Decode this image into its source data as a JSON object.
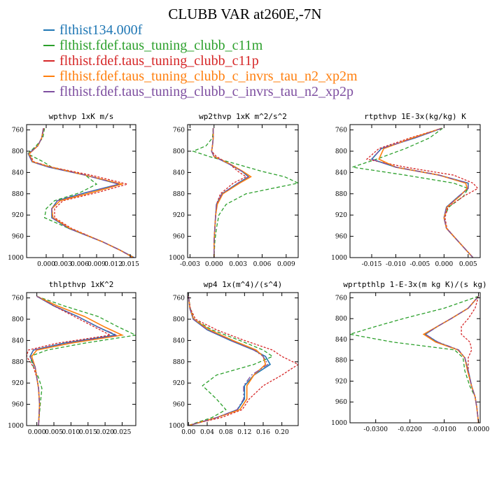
{
  "figure": {
    "title": "CLUBB VAR at260E,-7N",
    "legend": [
      {
        "label": "flthist134.000f",
        "color": "#1f77b4"
      },
      {
        "label": "flthist.fdef.taus_tuning_clubb_c11m",
        "color": "#2ca02c"
      },
      {
        "label": "flthist.fdef.taus_tuning_clubb_c11p",
        "color": "#d62728"
      },
      {
        "label": "flthist.fdef.taus_tuning_clubb_c_invrs_tau_n2_xp2m",
        "color": "#ff7f0e"
      },
      {
        "label": "flthist.fdef.taus_tuning_clubb_c_invrs_tau_n2_xp2p",
        "color": "#7e4fa0"
      }
    ]
  },
  "chart_data": [
    {
      "type": "line",
      "title": "wpthvp  1xK m/s",
      "y_ticks": [
        "760",
        "800",
        "840",
        "880",
        "920",
        "960",
        "1000"
      ],
      "ylim": [
        1000,
        750
      ],
      "xlim": [
        -0.0035,
        0.016
      ],
      "x_ticks": [
        "0.000",
        "0.003",
        "0.006",
        "0.009",
        "0.012",
        "0.015"
      ],
      "x_tick_values": [
        0,
        0.003,
        0.006,
        0.009,
        0.012,
        0.015
      ],
      "y": [
        757,
        775,
        790,
        805,
        820,
        830,
        845,
        862,
        878,
        893,
        908,
        925,
        945,
        970,
        985,
        1000
      ],
      "series": [
        {
          "x": [
            -0.0005,
            -0.0008,
            -0.0015,
            -0.0032,
            -0.0025,
            0.0005,
            0.007,
            0.013,
            0.007,
            0.002,
            0.001,
            0.001,
            0.004,
            0.01,
            0.013,
            0.0157
          ]
        },
        {
          "x": [
            -0.0003,
            -0.0006,
            -0.0018,
            -0.0033,
            -0.0005,
            0.001,
            0.007,
            0.009,
            0.006,
            0.0015,
            0.0,
            -0.0003,
            0.004,
            0.01,
            0.013,
            0.0157
          ]
        },
        {
          "x": [
            -0.0004,
            -0.0008,
            -0.0015,
            -0.003,
            -0.0022,
            0.001,
            0.008,
            0.0145,
            0.009,
            0.003,
            0.0015,
            0.0015,
            0.0045,
            0.01,
            0.013,
            0.0155
          ]
        },
        {
          "x": [
            -0.0005,
            -0.0008,
            -0.0015,
            -0.0031,
            -0.0024,
            0.0008,
            0.007,
            0.0135,
            0.008,
            0.0025,
            0.001,
            0.0012,
            0.0042,
            0.01,
            0.013,
            0.0156
          ]
        },
        {
          "x": [
            -0.0005,
            -0.0008,
            -0.0015,
            -0.0032,
            -0.0025,
            0.0005,
            0.007,
            0.013,
            0.007,
            0.002,
            0.001,
            0.001,
            0.004,
            0.01,
            0.013,
            0.0157
          ]
        }
      ]
    },
    {
      "type": "line",
      "title": "wp2thvp  1xK m^2/s^2",
      "y_ticks": [
        "760",
        "800",
        "840",
        "880",
        "920",
        "960",
        "1000"
      ],
      "ylim": [
        1000,
        750
      ],
      "xlim": [
        -0.0033,
        0.0105
      ],
      "x_ticks": [
        "-0.003",
        "0.000",
        "0.003",
        "0.006",
        "0.009"
      ],
      "x_tick_values": [
        -0.003,
        0,
        0.003,
        0.006,
        0.009
      ],
      "y": [
        757,
        775,
        790,
        800,
        810,
        825,
        838,
        848,
        860,
        880,
        900,
        920,
        945,
        970,
        1000
      ],
      "series": [
        {
          "x": [
            -0.0001,
            -0.0001,
            -0.0002,
            -0.0003,
            0.0,
            0.002,
            0.0035,
            0.0043,
            0.003,
            0.001,
            0.0003,
            0.0002,
            0.0001,
            0.0,
            0.0
          ]
        },
        {
          "x": [
            -0.0001,
            -0.0002,
            -0.001,
            -0.0026,
            -0.0006,
            0.003,
            0.006,
            0.0088,
            0.0105,
            0.004,
            0.0015,
            0.0006,
            0.0003,
            0.0001,
            0.0
          ]
        },
        {
          "x": [
            -0.0001,
            -0.0001,
            -0.0002,
            -0.0003,
            0.0003,
            0.002,
            0.003,
            0.004,
            0.0024,
            0.0008,
            0.0003,
            0.0002,
            0.0001,
            0.0,
            0.0
          ]
        },
        {
          "x": [
            -0.0001,
            -0.0001,
            -0.0002,
            -0.0003,
            0.0,
            0.0021,
            0.0036,
            0.0046,
            0.0032,
            0.0011,
            0.0004,
            0.0002,
            0.0001,
            0.0,
            0.0
          ]
        },
        {
          "x": [
            -0.0001,
            -0.0001,
            -0.0002,
            -0.0003,
            0.0,
            0.002,
            0.0035,
            0.0043,
            0.003,
            0.001,
            0.0003,
            0.0002,
            0.0001,
            0.0,
            0.0
          ]
        }
      ]
    },
    {
      "type": "line",
      "title": "rtpthvp  1E-3x(kg/kg) K",
      "y_ticks": [
        "760",
        "800",
        "840",
        "880",
        "920",
        "960",
        "1000"
      ],
      "ylim": [
        1000,
        750
      ],
      "xlim": [
        -0.0195,
        0.0075
      ],
      "x_ticks": [
        "-0.015",
        "-0.010",
        "-0.005",
        "0.000",
        "0.005"
      ],
      "x_tick_values": [
        -0.015,
        -0.01,
        -0.005,
        0,
        0.005
      ],
      "y": [
        757,
        775,
        795,
        815,
        830,
        845,
        860,
        870,
        885,
        905,
        925,
        945,
        970,
        1000
      ],
      "series": [
        {
          "x": [
            -0.0005,
            -0.006,
            -0.013,
            -0.015,
            -0.01,
            -0.001,
            0.005,
            0.005,
            0.003,
            0.0005,
            0.0,
            0.0005,
            0.003,
            0.006
          ]
        },
        {
          "x": [
            -0.0003,
            -0.003,
            -0.008,
            -0.014,
            -0.019,
            -0.008,
            0.002,
            0.005,
            0.004,
            0.001,
            0.0,
            0.0005,
            0.003,
            0.006
          ]
        },
        {
          "x": [
            -0.0005,
            -0.007,
            -0.0135,
            -0.016,
            -0.008,
            0.002,
            0.006,
            0.007,
            0.004,
            0.0008,
            0.0002,
            0.0006,
            0.003,
            0.006
          ]
        },
        {
          "x": [
            -0.0005,
            -0.0065,
            -0.0125,
            -0.0135,
            -0.01,
            -0.001,
            0.0045,
            0.0048,
            0.0032,
            0.0006,
            0.0,
            0.0005,
            0.003,
            0.006
          ]
        },
        {
          "x": [
            -0.0005,
            -0.006,
            -0.013,
            -0.015,
            -0.01,
            -0.001,
            0.005,
            0.005,
            0.003,
            0.0005,
            0.0,
            0.0005,
            0.003,
            0.006
          ]
        }
      ]
    },
    {
      "type": "line",
      "title": "thlpthvp  1xK^2",
      "y_ticks": [
        "760",
        "800",
        "840",
        "880",
        "920",
        "960",
        "1000"
      ],
      "ylim": [
        1000,
        750
      ],
      "xlim": [
        -0.003,
        0.029
      ],
      "x_ticks": [
        "0.000",
        "0.005",
        "0.010",
        "0.015",
        "0.020",
        "0.025"
      ],
      "x_tick_values": [
        0,
        0.005,
        0.01,
        0.015,
        0.02,
        0.025
      ],
      "y": [
        757,
        775,
        795,
        815,
        830,
        845,
        858,
        870,
        890,
        910,
        930,
        960,
        1000
      ],
      "series": [
        {
          "x": [
            0.0,
            0.005,
            0.012,
            0.018,
            0.023,
            0.008,
            -0.001,
            -0.002,
            -0.0005,
            0.0,
            0.0005,
            0.0008,
            0.0005
          ]
        },
        {
          "x": [
            0.0,
            0.008,
            0.018,
            0.024,
            0.029,
            0.014,
            0.003,
            -0.002,
            -0.001,
            0.0005,
            0.0015,
            0.001,
            0.0005
          ]
        },
        {
          "x": [
            0.0,
            0.005,
            0.011,
            0.017,
            0.0215,
            0.006,
            -0.0025,
            -0.003,
            -0.001,
            0.0,
            0.0005,
            0.0008,
            0.0005
          ]
        },
        {
          "x": [
            0.0,
            0.006,
            0.014,
            0.02,
            0.025,
            0.01,
            0.0,
            -0.0015,
            -0.0005,
            0.0,
            0.0005,
            0.0008,
            0.0005
          ]
        },
        {
          "x": [
            0.0,
            0.005,
            0.012,
            0.018,
            0.0235,
            0.0085,
            -0.001,
            -0.002,
            -0.0005,
            0.0,
            0.0005,
            0.0008,
            0.0005
          ]
        }
      ]
    },
    {
      "type": "line",
      "title": "wp4  1x(m^4)/(s^4)",
      "y_ticks": [
        "760",
        "800",
        "840",
        "880",
        "920",
        "960",
        "1000"
      ],
      "ylim": [
        1000,
        750
      ],
      "xlim": [
        -0.002,
        0.235
      ],
      "x_ticks": [
        "0.00",
        "0.04",
        "0.08",
        "0.12",
        "0.16",
        "0.20"
      ],
      "x_tick_values": [
        0,
        0.04,
        0.08,
        0.12,
        0.16,
        0.2
      ],
      "y": [
        757,
        780,
        800,
        820,
        840,
        858,
        870,
        885,
        905,
        925,
        950,
        970,
        985,
        995,
        1000
      ],
      "series": [
        {
          "x": [
            0.0,
            0.003,
            0.01,
            0.04,
            0.09,
            0.14,
            0.165,
            0.175,
            0.14,
            0.12,
            0.12,
            0.105,
            0.06,
            0.02,
            0.0
          ]
        },
        {
          "x": [
            0.0,
            0.004,
            0.012,
            0.05,
            0.11,
            0.16,
            0.18,
            0.14,
            0.06,
            0.03,
            0.06,
            0.08,
            0.05,
            0.015,
            0.0
          ]
        },
        {
          "x": [
            0.0,
            0.004,
            0.015,
            0.06,
            0.12,
            0.18,
            0.2,
            0.235,
            0.2,
            0.16,
            0.13,
            0.115,
            0.07,
            0.02,
            0.0
          ]
        },
        {
          "x": [
            0.0,
            0.003,
            0.011,
            0.045,
            0.095,
            0.145,
            0.16,
            0.165,
            0.14,
            0.125,
            0.125,
            0.11,
            0.06,
            0.02,
            0.0
          ]
        },
        {
          "x": [
            0.0,
            0.003,
            0.01,
            0.04,
            0.09,
            0.14,
            0.16,
            0.17,
            0.135,
            0.118,
            0.118,
            0.104,
            0.06,
            0.02,
            0.0
          ]
        }
      ]
    },
    {
      "type": "line",
      "title": "wprtpthlp  1-E-3x(m kg K)/(s kg)",
      "y_ticks": [
        "760",
        "800",
        "840",
        "880",
        "920",
        "960",
        "1000"
      ],
      "ylim": [
        1000,
        750
      ],
      "xlim": [
        -0.0375,
        0.0005
      ],
      "x_ticks": [
        "-0.0300",
        "-0.0200",
        "-0.0100",
        "0.0000"
      ],
      "x_tick_values": [
        -0.03,
        -0.02,
        -0.01,
        0
      ],
      "y": [
        757,
        780,
        800,
        815,
        830,
        845,
        860,
        875,
        900,
        930,
        950,
        970,
        1000
      ],
      "series": [
        {
          "x": [
            0.0,
            -0.003,
            -0.008,
            -0.012,
            -0.0155,
            -0.012,
            -0.006,
            -0.004,
            -0.003,
            -0.002,
            -0.001,
            -0.0005,
            0.0
          ]
        },
        {
          "x": [
            0.0,
            -0.01,
            -0.022,
            -0.03,
            -0.0375,
            -0.025,
            -0.007,
            -0.0045,
            -0.004,
            -0.0025,
            -0.001,
            -0.0005,
            0.0
          ]
        },
        {
          "x": [
            0.0,
            -0.001,
            -0.003,
            -0.005,
            -0.005,
            -0.0025,
            -0.002,
            -0.003,
            -0.003,
            -0.002,
            -0.001,
            -0.0005,
            0.0
          ]
        },
        {
          "x": [
            0.0,
            -0.003,
            -0.008,
            -0.012,
            -0.016,
            -0.0125,
            -0.006,
            -0.004,
            -0.0032,
            -0.002,
            -0.001,
            -0.0005,
            0.0
          ]
        },
        {
          "x": [
            0.0,
            -0.003,
            -0.008,
            -0.012,
            -0.0155,
            -0.0118,
            -0.0058,
            -0.004,
            -0.003,
            -0.002,
            -0.001,
            -0.0005,
            0.0
          ]
        }
      ]
    }
  ]
}
